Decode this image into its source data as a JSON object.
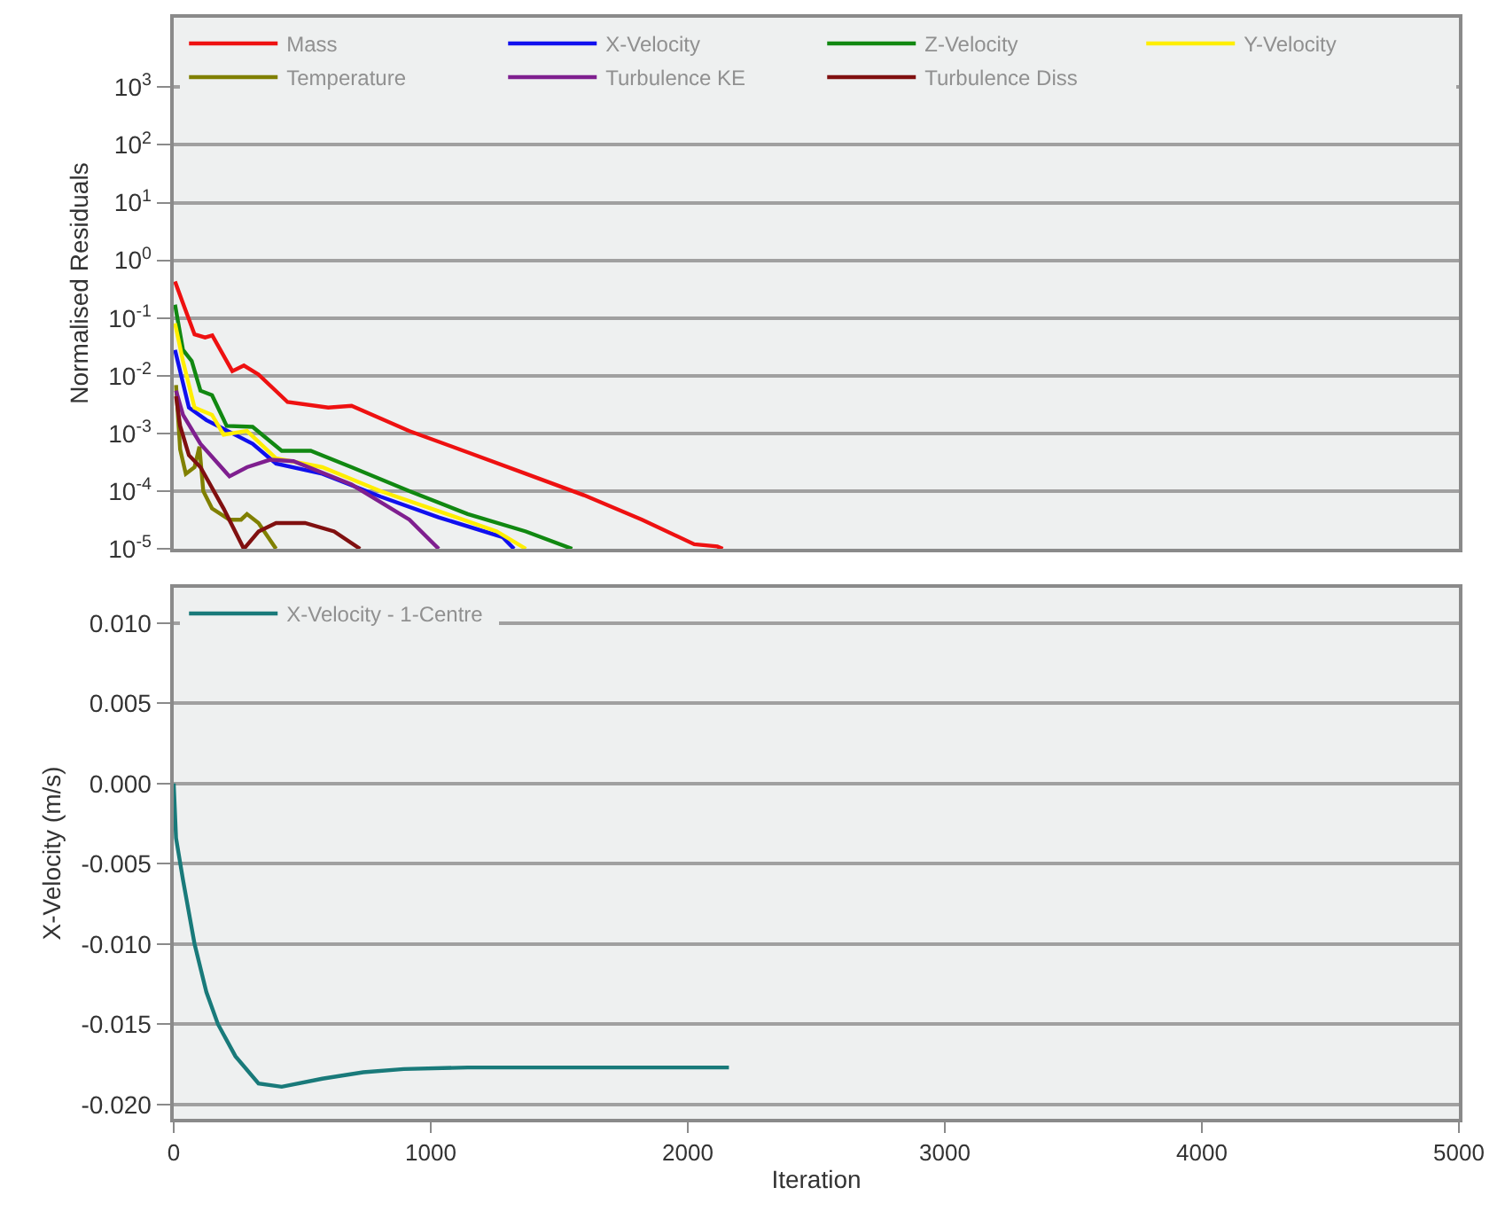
{
  "chart_data": [
    {
      "type": "line",
      "ylabel": "Normalised Residuals",
      "log": "y",
      "grid": "y",
      "legend": "top left",
      "tick_labels": "y",
      "marker": "none",
      "line_style": "solid",
      "xlim": [
        0,
        5000
      ],
      "ylim": [
        1e-05,
        16000
      ],
      "yticks": [
        {
          "value": 1000,
          "label": "10$^{3}$"
        },
        {
          "value": 100,
          "label": "10$^{2}$"
        },
        {
          "value": 10,
          "label": "10$^{1}$"
        },
        {
          "value": 1,
          "label": "10$^{0}$"
        },
        {
          "value": 0.1,
          "label": "10$^{-1}$"
        },
        {
          "value": 0.01,
          "label": "10$^{-2}$"
        },
        {
          "value": 0.001,
          "label": "10$^{-3}$"
        },
        {
          "value": 0.0001,
          "label": "10$^{-4}$"
        },
        {
          "value": 1e-05,
          "label": "10$^{-5}$"
        }
      ],
      "series": [
        {
          "name": "Mass",
          "color": "#ee1111",
          "x": [
            5,
            34,
            81,
            122,
            150,
            228,
            273,
            330,
            443,
            601,
            692,
            917,
            1144,
            1370,
            1596,
            1822,
            2025,
            2115,
            2136
          ],
          "values": [
            0.43,
            0.19,
            0.052,
            0.046,
            0.05,
            0.012,
            0.015,
            0.0105,
            0.0035,
            0.0028,
            0.003,
            0.0011,
            0.00047,
            0.0002,
            8.5e-05,
            3.2e-05,
            1.2e-05,
            1.1e-05,
            1e-05
          ]
        },
        {
          "name": "X-Velocity",
          "color": "#1010ee",
          "x": [
            5,
            59,
            127,
            194,
            307,
            398,
            578,
            805,
            1031,
            1279,
            1324
          ],
          "values": [
            0.028,
            0.0028,
            0.0017,
            0.0012,
            0.00066,
            0.0003,
            0.0002,
            8e-05,
            3.5e-05,
            1.6e-05,
            1e-05
          ]
        },
        {
          "name": "Z-Velocity",
          "color": "#118811",
          "x": [
            5,
            36,
            70,
            104,
            149,
            206,
            307,
            420,
            533,
            692,
            917,
            1144,
            1370,
            1550
          ],
          "values": [
            0.17,
            0.028,
            0.018,
            0.0055,
            0.0046,
            0.00135,
            0.0013,
            0.0005,
            0.0005,
            0.00026,
            0.0001,
            4e-05,
            2e-05,
            1e-05
          ]
        },
        {
          "name": "Y-Velocity",
          "color": "#ffee00",
          "x": [
            5,
            36,
            81,
            149,
            194,
            285,
            398,
            578,
            805,
            1031,
            1257,
            1370
          ],
          "values": [
            0.081,
            0.018,
            0.0028,
            0.0021,
            0.00095,
            0.0011,
            0.00037,
            0.00026,
            0.0001,
            4.5e-05,
            2e-05,
            1e-05
          ]
        },
        {
          "name": "Temperature",
          "color": "#808000",
          "x": [
            9,
            25,
            47,
            81,
            100,
            115,
            149,
            217,
            262,
            285,
            330,
            398
          ],
          "values": [
            0.0069,
            0.00053,
            0.0002,
            0.00026,
            0.00059,
            0.0001,
            5e-05,
            3.2e-05,
            3.2e-05,
            4e-05,
            2.8e-05,
            1e-05
          ]
        },
        {
          "name": "Turbulence KE",
          "color": "#7f1f8f",
          "x": [
            9,
            36,
            104,
            217,
            285,
            375,
            466,
            692,
            917,
            1031
          ],
          "values": [
            0.0055,
            0.0021,
            0.00066,
            0.00018,
            0.00026,
            0.00035,
            0.00033,
            0.00013,
            3.2e-05,
            1e-05
          ]
        },
        {
          "name": "Turbulence Diss",
          "color": "#801010",
          "x": [
            9,
            25,
            59,
            104,
            194,
            273,
            330,
            398,
            511,
            624,
            725
          ],
          "values": [
            0.0044,
            0.00135,
            0.00042,
            0.00026,
            5e-05,
            1e-05,
            2e-05,
            2.8e-05,
            2.8e-05,
            2e-05,
            1e-05
          ]
        }
      ]
    },
    {
      "type": "line",
      "xlabel": "Iteration",
      "ylabel": "X-Velocity (m/s)",
      "grid": "y",
      "legend": "top left",
      "marker": "none",
      "line_style": "solid",
      "xlim": [
        0,
        5000
      ],
      "ylim": [
        -0.0209,
        0.0122
      ],
      "xticks": [
        0,
        1000,
        2000,
        3000,
        4000,
        5000
      ],
      "yticks": [
        {
          "value": 0.01,
          "label": "0.010"
        },
        {
          "value": 0.005,
          "label": "0.005"
        },
        {
          "value": 0,
          "label": "0.000"
        },
        {
          "value": -0.005,
          "label": "-0.005"
        },
        {
          "value": -0.01,
          "label": "-0.010"
        },
        {
          "value": -0.015,
          "label": "-0.015"
        },
        {
          "value": -0.02,
          "label": "-0.020"
        }
      ],
      "series": [
        {
          "name": "X-Velocity - 1-Centre",
          "color": "#197a7a",
          "x": [
            0,
            9,
            36,
            81,
            127,
            172,
            240,
            330,
            420,
            578,
            737,
            895,
            1144,
            2160
          ],
          "values": [
            0.0,
            -0.0034,
            -0.006,
            -0.01,
            -0.013,
            -0.015,
            -0.017,
            -0.0187,
            -0.0189,
            -0.0184,
            -0.018,
            -0.0178,
            -0.0177,
            -0.0177
          ]
        }
      ]
    }
  ]
}
